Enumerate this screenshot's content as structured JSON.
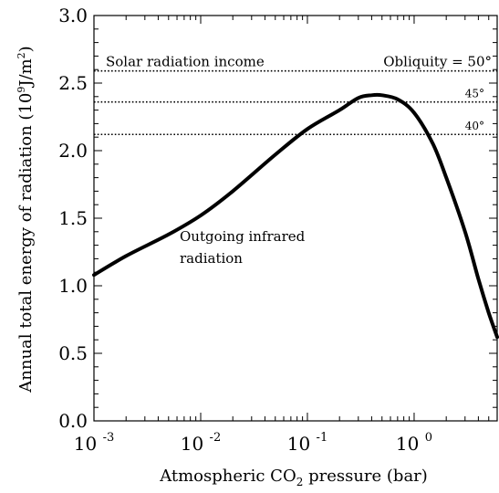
{
  "chart_data": {
    "type": "line",
    "xlabel": {
      "pre": "Atmospheric CO",
      "sub": "2",
      "post": " pressure (bar)"
    },
    "ylabel": {
      "pre": "Annual total energy of radiation (10",
      "sup": "9",
      "mid": "J/m",
      "sup2": "2",
      "post": ")"
    },
    "x_scale": "log",
    "xlim": [
      0.001,
      6
    ],
    "ylim": [
      0.0,
      3.0
    ],
    "y_ticks": [
      "0.0",
      "0.5",
      "1.0",
      "1.5",
      "2.0",
      "2.5",
      "3.0"
    ],
    "x_ticks": [
      {
        "value": 0.001,
        "base": "10",
        "exp": "-3"
      },
      {
        "value": 0.01,
        "base": "10",
        "exp": "-2"
      },
      {
        "value": 0.1,
        "base": "10",
        "exp": "-1"
      },
      {
        "value": 1,
        "base": "10",
        "exp": "0"
      }
    ],
    "series": [
      {
        "label": "Outgoing infrared radiation",
        "label2": "radiation",
        "label1": "Outgoing infrared",
        "points": [
          [
            0.001,
            1.08
          ],
          [
            0.002,
            1.22
          ],
          [
            0.005,
            1.38
          ],
          [
            0.01,
            1.52
          ],
          [
            0.02,
            1.7
          ],
          [
            0.05,
            1.97
          ],
          [
            0.1,
            2.16
          ],
          [
            0.2,
            2.3
          ],
          [
            0.3,
            2.39
          ],
          [
            0.4,
            2.41
          ],
          [
            0.5,
            2.41
          ],
          [
            0.7,
            2.38
          ],
          [
            1.0,
            2.28
          ],
          [
            1.5,
            2.05
          ],
          [
            2.0,
            1.8
          ],
          [
            3.0,
            1.4
          ],
          [
            4.0,
            1.05
          ],
          [
            5.0,
            0.8
          ],
          [
            6.0,
            0.62
          ]
        ]
      }
    ],
    "reference_lines": [
      {
        "y": 2.59,
        "label": "Obliquity = 50°",
        "note": "Solar radiation income"
      },
      {
        "y": 2.36,
        "label": "45°"
      },
      {
        "y": 2.12,
        "label": "40°"
      }
    ]
  }
}
